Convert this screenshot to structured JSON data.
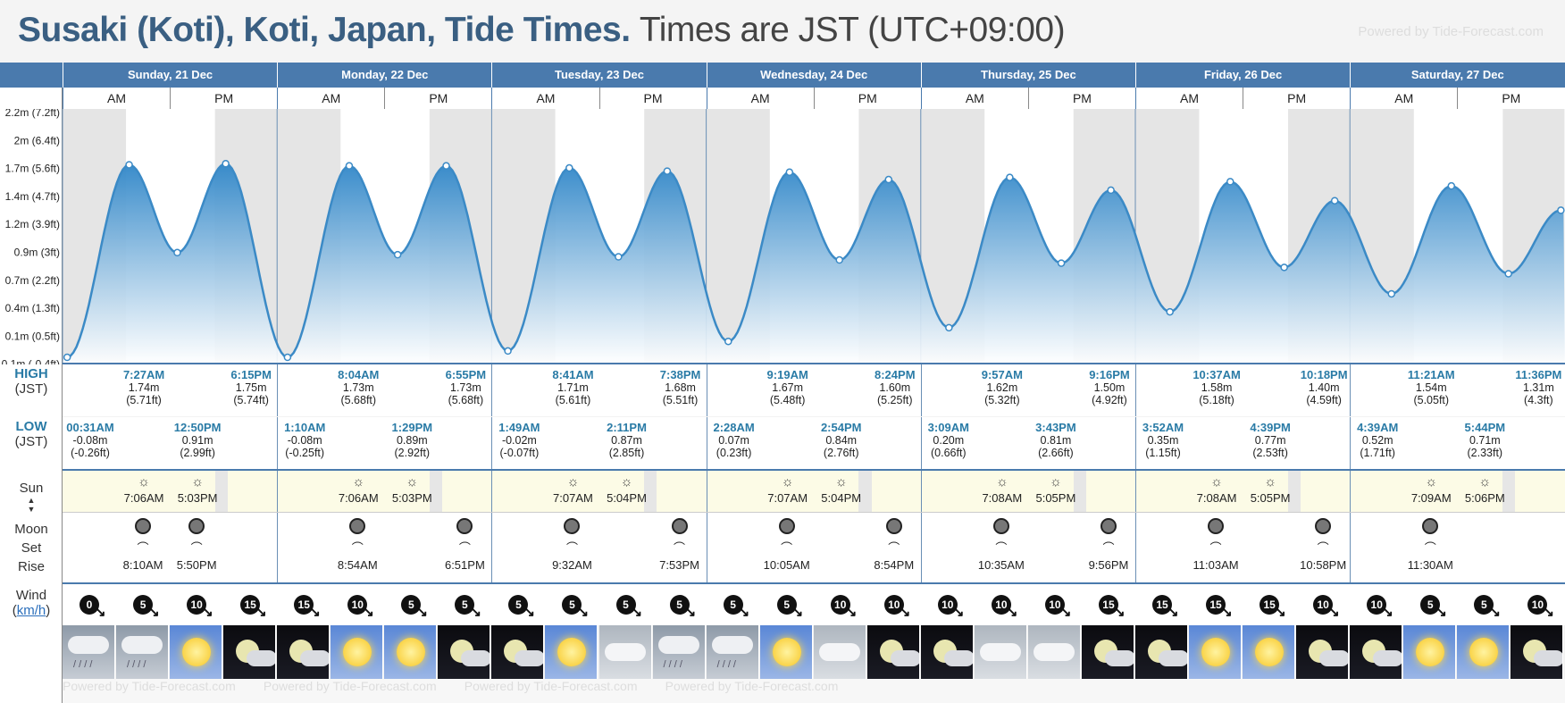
{
  "title": {
    "main": "Susaki (Koti), Koti, Japan, Tide Times.",
    "sub": "Times are JST (UTC+09:00)",
    "powered": "Powered by Tide-Forecast.com"
  },
  "days": [
    "Sunday, 21 Dec",
    "Monday, 22 Dec",
    "Tuesday, 23 Dec",
    "Wednesday, 24 Dec",
    "Thursday, 25 Dec",
    "Friday, 26 Dec",
    "Saturday, 27 Dec"
  ],
  "ampm": [
    "AM",
    "PM"
  ],
  "labels": {
    "high": "HIGH",
    "high_tz": "(JST)",
    "low": "LOW",
    "low_tz": "(JST)",
    "sun": "Sun",
    "moon": "Moon",
    "moon_set": "Set",
    "moon_rise": "Rise",
    "wind": "Wind",
    "wind_unit": "km/h"
  },
  "chart_data": {
    "type": "area",
    "y_ticks": [
      "2.2m (7.2ft)",
      "2m (6.4ft)",
      "1.7m (5.6ft)",
      "1.4m (4.7ft)",
      "1.2m (3.9ft)",
      "0.9m (3ft)",
      "0.7m (2.2ft)",
      "0.4m (1.3ft)",
      "0.1m (0.5ft)",
      "0.1m (-0.4ft)"
    ],
    "ylim": [
      -0.08,
      2.2
    ],
    "points": [
      {
        "day": 0,
        "time": "00:31",
        "h": -0.08,
        "type": "low"
      },
      {
        "day": 0,
        "time": "07:27",
        "h": 1.74,
        "type": "high"
      },
      {
        "day": 0,
        "time": "12:50",
        "h": 0.91,
        "type": "low"
      },
      {
        "day": 0,
        "time": "18:15",
        "h": 1.75,
        "type": "high"
      },
      {
        "day": 1,
        "time": "01:10",
        "h": -0.08,
        "type": "low"
      },
      {
        "day": 1,
        "time": "08:04",
        "h": 1.73,
        "type": "high"
      },
      {
        "day": 1,
        "time": "13:29",
        "h": 0.89,
        "type": "low"
      },
      {
        "day": 1,
        "time": "18:55",
        "h": 1.73,
        "type": "high"
      },
      {
        "day": 2,
        "time": "01:49",
        "h": -0.02,
        "type": "low"
      },
      {
        "day": 2,
        "time": "08:41",
        "h": 1.71,
        "type": "high"
      },
      {
        "day": 2,
        "time": "14:11",
        "h": 0.87,
        "type": "low"
      },
      {
        "day": 2,
        "time": "19:38",
        "h": 1.68,
        "type": "high"
      },
      {
        "day": 3,
        "time": "02:28",
        "h": 0.07,
        "type": "low"
      },
      {
        "day": 3,
        "time": "09:19",
        "h": 1.67,
        "type": "high"
      },
      {
        "day": 3,
        "time": "14:54",
        "h": 0.84,
        "type": "low"
      },
      {
        "day": 3,
        "time": "20:24",
        "h": 1.6,
        "type": "high"
      },
      {
        "day": 4,
        "time": "03:09",
        "h": 0.2,
        "type": "low"
      },
      {
        "day": 4,
        "time": "09:57",
        "h": 1.62,
        "type": "high"
      },
      {
        "day": 4,
        "time": "15:43",
        "h": 0.81,
        "type": "low"
      },
      {
        "day": 4,
        "time": "21:16",
        "h": 1.5,
        "type": "high"
      },
      {
        "day": 5,
        "time": "03:52",
        "h": 0.35,
        "type": "low"
      },
      {
        "day": 5,
        "time": "10:37",
        "h": 1.58,
        "type": "high"
      },
      {
        "day": 5,
        "time": "16:39",
        "h": 0.77,
        "type": "low"
      },
      {
        "day": 5,
        "time": "22:18",
        "h": 1.4,
        "type": "high"
      },
      {
        "day": 6,
        "time": "04:39",
        "h": 0.52,
        "type": "low"
      },
      {
        "day": 6,
        "time": "11:21",
        "h": 1.54,
        "type": "high"
      },
      {
        "day": 6,
        "time": "17:44",
        "h": 0.71,
        "type": "low"
      },
      {
        "day": 6,
        "time": "23:36",
        "h": 1.31,
        "type": "high"
      }
    ],
    "sunrise": [
      "07:06",
      "07:06",
      "07:07",
      "07:07",
      "07:08",
      "07:08",
      "07:09"
    ],
    "sunset": [
      "17:03",
      "17:03",
      "17:04",
      "17:04",
      "17:05",
      "17:05",
      "17:06"
    ]
  },
  "highs": [
    {
      "day": 0,
      "time": "7:27AM",
      "m": "1.74m",
      "ft": "(5.71ft)",
      "pos": 1
    },
    {
      "day": 0,
      "time": "6:15PM",
      "m": "1.75m",
      "ft": "(5.74ft)",
      "pos": 3
    },
    {
      "day": 1,
      "time": "8:04AM",
      "m": "1.73m",
      "ft": "(5.68ft)",
      "pos": 1
    },
    {
      "day": 1,
      "time": "6:55PM",
      "m": "1.73m",
      "ft": "(5.68ft)",
      "pos": 3
    },
    {
      "day": 2,
      "time": "8:41AM",
      "m": "1.71m",
      "ft": "(5.61ft)",
      "pos": 1
    },
    {
      "day": 2,
      "time": "7:38PM",
      "m": "1.68m",
      "ft": "(5.51ft)",
      "pos": 3
    },
    {
      "day": 3,
      "time": "9:19AM",
      "m": "1.67m",
      "ft": "(5.48ft)",
      "pos": 1
    },
    {
      "day": 3,
      "time": "8:24PM",
      "m": "1.60m",
      "ft": "(5.25ft)",
      "pos": 3
    },
    {
      "day": 4,
      "time": "9:57AM",
      "m": "1.62m",
      "ft": "(5.32ft)",
      "pos": 1
    },
    {
      "day": 4,
      "time": "9:16PM",
      "m": "1.50m",
      "ft": "(4.92ft)",
      "pos": 3
    },
    {
      "day": 5,
      "time": "10:37AM",
      "m": "1.58m",
      "ft": "(5.18ft)",
      "pos": 1
    },
    {
      "day": 5,
      "time": "10:18PM",
      "m": "1.40m",
      "ft": "(4.59ft)",
      "pos": 3
    },
    {
      "day": 6,
      "time": "11:21AM",
      "m": "1.54m",
      "ft": "(5.05ft)",
      "pos": 1
    },
    {
      "day": 6,
      "time": "11:36PM",
      "m": "1.31m",
      "ft": "(4.3ft)",
      "pos": 3
    }
  ],
  "lows": [
    {
      "day": 0,
      "time": "00:31AM",
      "m": "-0.08m",
      "ft": "(-0.26ft)",
      "pos": 0
    },
    {
      "day": 0,
      "time": "12:50PM",
      "m": "0.91m",
      "ft": "(2.99ft)",
      "pos": 2
    },
    {
      "day": 1,
      "time": "1:10AM",
      "m": "-0.08m",
      "ft": "(-0.25ft)",
      "pos": 0
    },
    {
      "day": 1,
      "time": "1:29PM",
      "m": "0.89m",
      "ft": "(2.92ft)",
      "pos": 2
    },
    {
      "day": 2,
      "time": "1:49AM",
      "m": "-0.02m",
      "ft": "(-0.07ft)",
      "pos": 0
    },
    {
      "day": 2,
      "time": "2:11PM",
      "m": "0.87m",
      "ft": "(2.85ft)",
      "pos": 2
    },
    {
      "day": 3,
      "time": "2:28AM",
      "m": "0.07m",
      "ft": "(0.23ft)",
      "pos": 0
    },
    {
      "day": 3,
      "time": "2:54PM",
      "m": "0.84m",
      "ft": "(2.76ft)",
      "pos": 2
    },
    {
      "day": 4,
      "time": "3:09AM",
      "m": "0.20m",
      "ft": "(0.66ft)",
      "pos": 0
    },
    {
      "day": 4,
      "time": "3:43PM",
      "m": "0.81m",
      "ft": "(2.66ft)",
      "pos": 2
    },
    {
      "day": 5,
      "time": "3:52AM",
      "m": "0.35m",
      "ft": "(1.15ft)",
      "pos": 0
    },
    {
      "day": 5,
      "time": "4:39PM",
      "m": "0.77m",
      "ft": "(2.53ft)",
      "pos": 2
    },
    {
      "day": 6,
      "time": "4:39AM",
      "m": "0.52m",
      "ft": "(1.71ft)",
      "pos": 0
    },
    {
      "day": 6,
      "time": "5:44PM",
      "m": "0.71m",
      "ft": "(2.33ft)",
      "pos": 2
    }
  ],
  "sun_times": [
    {
      "rise": "7:06AM",
      "set": "5:03PM"
    },
    {
      "rise": "7:06AM",
      "set": "5:03PM"
    },
    {
      "rise": "7:07AM",
      "set": "5:04PM"
    },
    {
      "rise": "7:07AM",
      "set": "5:04PM"
    },
    {
      "rise": "7:08AM",
      "set": "5:05PM"
    },
    {
      "rise": "7:08AM",
      "set": "5:05PM"
    },
    {
      "rise": "7:09AM",
      "set": "5:06PM"
    }
  ],
  "moon_times": [
    {
      "day": 0,
      "pos": 1,
      "time": "8:10AM",
      "kind": "rise"
    },
    {
      "day": 0,
      "pos": 2,
      "time": "5:50PM",
      "kind": "set"
    },
    {
      "day": 1,
      "pos": 1,
      "time": "8:54AM",
      "kind": "rise"
    },
    {
      "day": 1,
      "pos": 3,
      "time": "6:51PM",
      "kind": "set"
    },
    {
      "day": 2,
      "pos": 1,
      "time": "9:32AM",
      "kind": "rise"
    },
    {
      "day": 2,
      "pos": 3,
      "time": "7:53PM",
      "kind": "set"
    },
    {
      "day": 3,
      "pos": 1,
      "time": "10:05AM",
      "kind": "rise"
    },
    {
      "day": 3,
      "pos": 3,
      "time": "8:54PM",
      "kind": "set"
    },
    {
      "day": 4,
      "pos": 1,
      "time": "10:35AM",
      "kind": "rise"
    },
    {
      "day": 4,
      "pos": 3,
      "time": "9:56PM",
      "kind": "set"
    },
    {
      "day": 5,
      "pos": 1,
      "time": "11:03AM",
      "kind": "rise"
    },
    {
      "day": 5,
      "pos": 3,
      "time": "10:58PM",
      "kind": "set"
    },
    {
      "day": 6,
      "pos": 1,
      "time": "11:30AM",
      "kind": "rise"
    }
  ],
  "wind": [
    "0",
    "5",
    "10",
    "15",
    "15",
    "10",
    "5",
    "5",
    "5",
    "5",
    "5",
    "5",
    "5",
    "5",
    "10",
    "10",
    "10",
    "10",
    "10",
    "15",
    "15",
    "15",
    "15",
    "10",
    "10",
    "5",
    "5",
    "10"
  ],
  "weather": [
    "rain",
    "rain",
    "day",
    "night",
    "night",
    "day",
    "day",
    "night",
    "night",
    "day",
    "grey",
    "rain",
    "rain",
    "day",
    "grey",
    "night",
    "night",
    "grey",
    "grey",
    "night",
    "night",
    "day",
    "day",
    "night",
    "night",
    "day",
    "day",
    "night"
  ],
  "colors": {
    "header": "#4a7aad",
    "tide_line": "#3b8ac6",
    "tide_fill_top": "#2f86c8",
    "tide_fill_bottom": "#ffffff",
    "night_band": "#e5e5e5"
  }
}
